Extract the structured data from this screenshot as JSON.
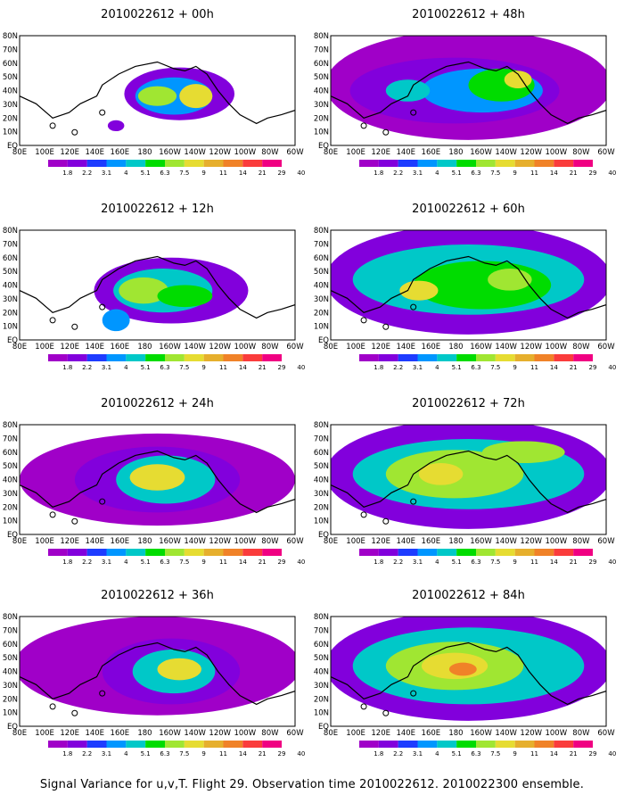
{
  "panels": [
    {
      "title": "2010022612 + 00h"
    },
    {
      "title": "2010022612 + 48h"
    },
    {
      "title": "2010022612 + 12h"
    },
    {
      "title": "2010022612 + 60h"
    },
    {
      "title": "2010022612 + 24h"
    },
    {
      "title": "2010022612 + 72h"
    },
    {
      "title": "2010022612 + 36h"
    },
    {
      "title": "2010022612 + 84h"
    }
  ],
  "lon_labels": [
    "80E",
    "100E",
    "120E",
    "140E",
    "160E",
    "180",
    "160W",
    "140W",
    "120W",
    "100W",
    "80W",
    "60W"
  ],
  "lat_labels": [
    "EQ",
    "10N",
    "20N",
    "30N",
    "40N",
    "50N",
    "60N",
    "70N",
    "80N"
  ],
  "colorbar": {
    "labels": [
      "1.8",
      "2.2",
      "3.1",
      "4",
      "5.1",
      "6.3",
      "7.5",
      "9",
      "11",
      "14",
      "21",
      "29",
      "40"
    ],
    "colors": [
      "#a000c8",
      "#8200dc",
      "#1e3cff",
      "#0096ff",
      "#00c8c8",
      "#00dc00",
      "#a0e632",
      "#e6dc32",
      "#e6af2d",
      "#f08228",
      "#fa3c3c",
      "#f00082"
    ],
    "shades_title": "color levels low→high: purple, blue, cyan, green, yellow, orange, red, magenta"
  },
  "caption": "Signal Variance for u,v,T. Flight 29. Observation time 2010022612. 2010022300 ensemble.",
  "colors": {
    "background": "#ffffff",
    "coast": "#000000"
  }
}
